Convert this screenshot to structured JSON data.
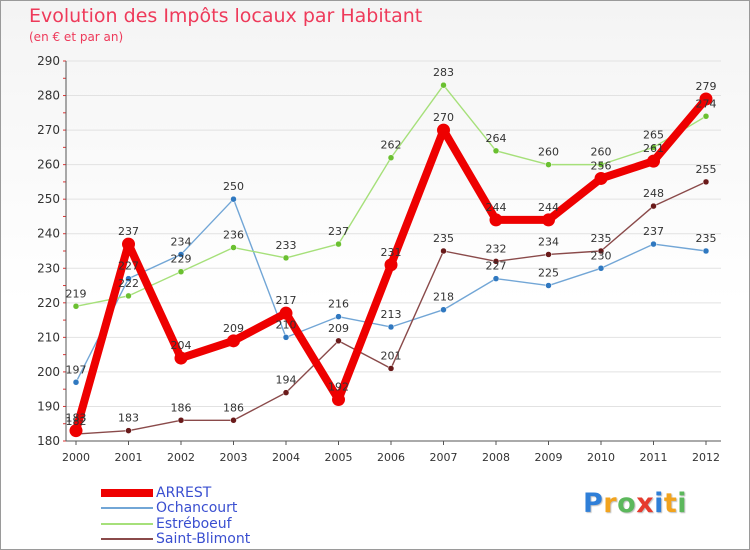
{
  "brand": {
    "letters": [
      "P",
      "r",
      "o",
      "x",
      "i",
      "t",
      "i"
    ],
    "colors": [
      "#2f7fd8",
      "#f2a31d",
      "#5cb85c",
      "#e63b2e",
      "#2f7fd8",
      "#f2a31d",
      "#5cb85c"
    ]
  },
  "chart_data": {
    "type": "line",
    "title": "Evolution des Impôts locaux par Habitant",
    "subtitle": "(en € et par an)",
    "xlabel": "",
    "ylabel": "",
    "x": [
      "2000",
      "2001",
      "2002",
      "2003",
      "2004",
      "2005",
      "2006",
      "2007",
      "2008",
      "2009",
      "2010",
      "2011",
      "2012"
    ],
    "ylim": [
      180,
      290
    ],
    "yticks": [
      "180",
      "190",
      "200",
      "210",
      "220",
      "230",
      "240",
      "250",
      "260",
      "270",
      "280",
      "290"
    ],
    "grid": "horizontal",
    "legend_position": "bottom-left",
    "series": [
      {
        "name": "ARREST",
        "color": "#ee0000",
        "marker_color": "#ee0000",
        "emphasis": "thick",
        "values": [
          183,
          237,
          204,
          209,
          217,
          192,
          231,
          270,
          244,
          244,
          256,
          261,
          279
        ],
        "labels": [
          "183",
          "237",
          "204",
          "209",
          "217",
          "192",
          "231",
          "270",
          "244",
          "244",
          "256",
          "261",
          "279"
        ]
      },
      {
        "name": "Ochancourt",
        "color": "#72a6d6",
        "marker_color": "#2f78c0",
        "emphasis": "thin",
        "values": [
          197,
          227,
          234,
          250,
          210,
          216,
          213,
          218,
          227,
          225,
          230,
          237,
          235
        ],
        "labels": [
          "197",
          "227",
          "234",
          "250",
          "210",
          "216",
          "213",
          "218",
          "227",
          "225",
          "230",
          "237",
          "235"
        ]
      },
      {
        "name": "Estréboeuf",
        "color": "#a6e07a",
        "marker_color": "#6ac030",
        "emphasis": "thin",
        "values": [
          219,
          222,
          229,
          236,
          233,
          237,
          262,
          283,
          264,
          260,
          260,
          265,
          274
        ],
        "labels": [
          "219",
          "222",
          "229",
          "236",
          "233",
          "237",
          "262",
          "283",
          "264",
          "260",
          "260",
          "265",
          "274"
        ]
      },
      {
        "name": "Saint-Blimont",
        "color": "#8a4a4a",
        "marker_color": "#6a1a1a",
        "emphasis": "thin",
        "values": [
          182,
          183,
          186,
          186,
          194,
          209,
          201,
          235,
          232,
          234,
          235,
          248,
          255
        ],
        "labels": [
          "182",
          "183",
          "186",
          "186",
          "194",
          "209",
          "201",
          "235",
          "232",
          "234",
          "235",
          "248",
          "255"
        ]
      }
    ]
  }
}
